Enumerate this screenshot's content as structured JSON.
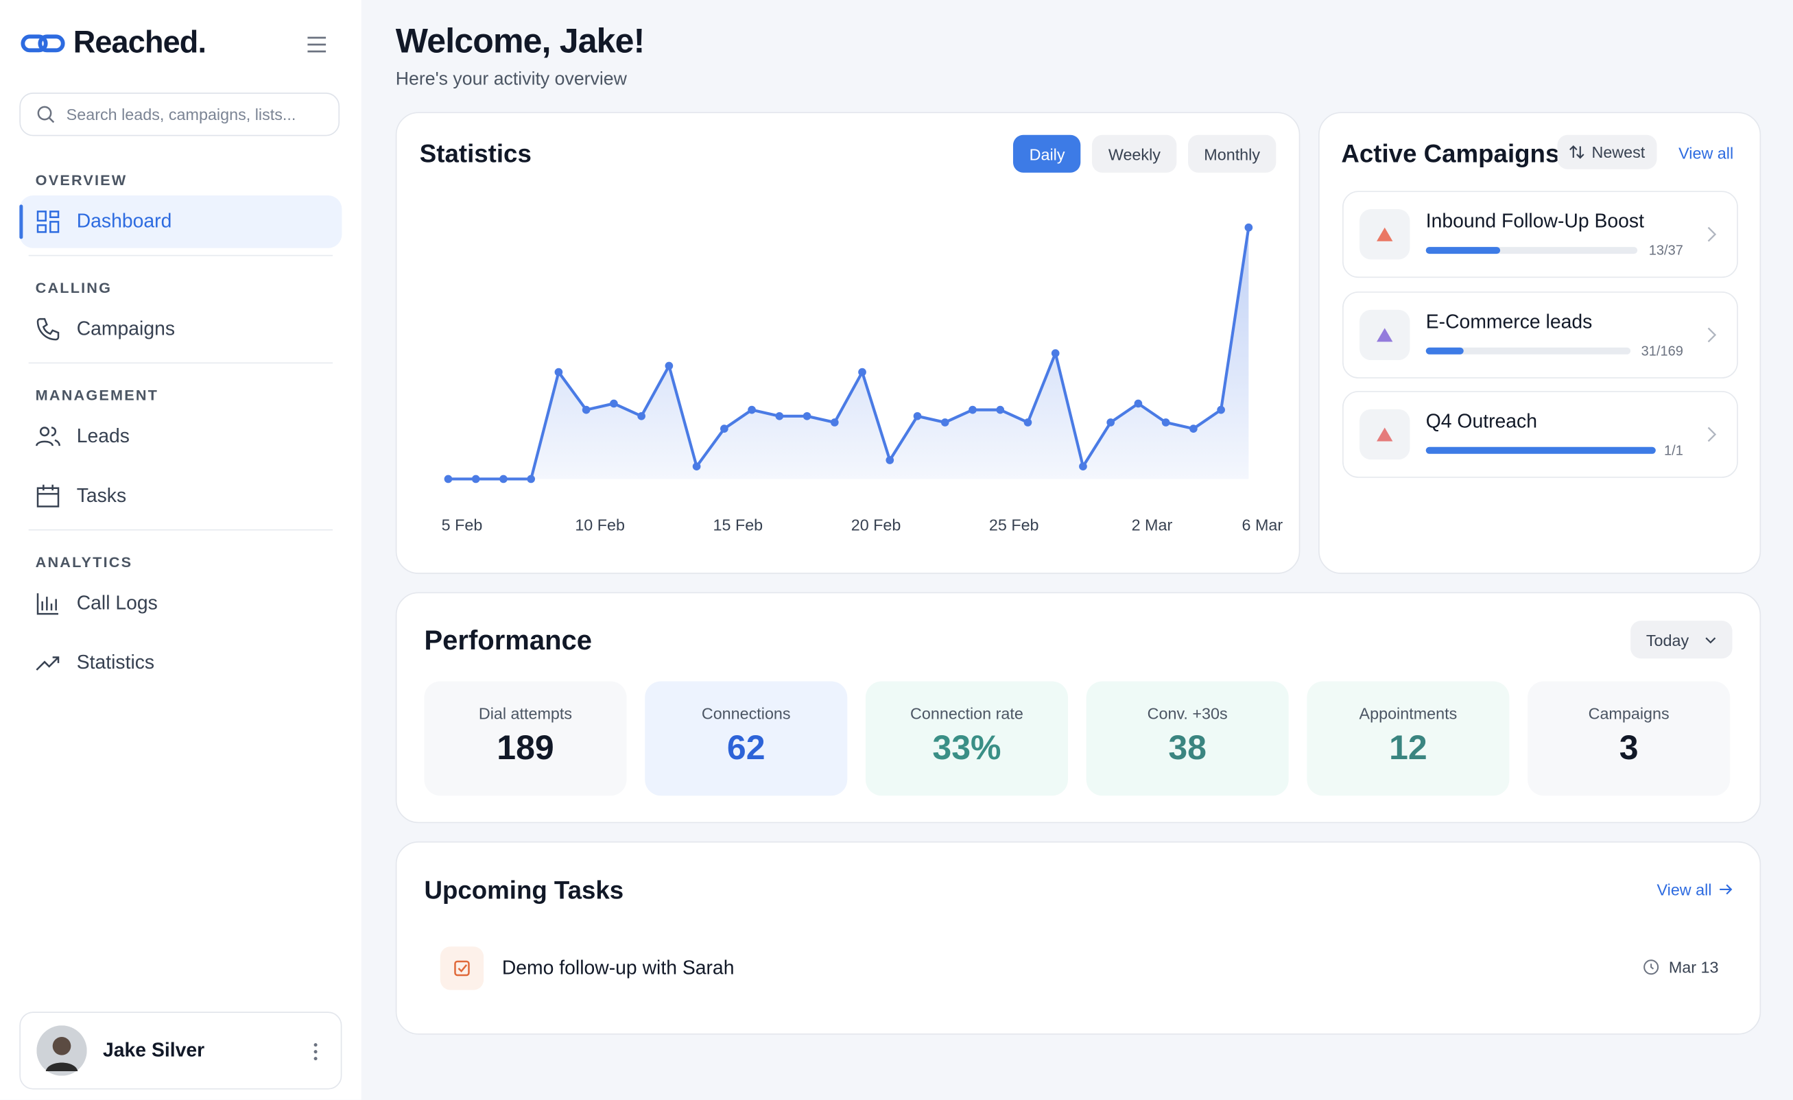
{
  "brand": "Reached.",
  "search_placeholder": "Search leads, campaigns, lists...",
  "nav": [
    {
      "section": "OVERVIEW",
      "items": [
        "Dashboard"
      ]
    },
    {
      "section": "CALLING",
      "items": [
        "Campaigns"
      ]
    },
    {
      "section": "MANAGEMENT",
      "items": [
        "Leads",
        "Tasks"
      ]
    },
    {
      "section": "ANALYTICS",
      "items": [
        "Call Logs",
        "Statistics"
      ]
    }
  ],
  "user": "Jake Silver",
  "header": {
    "title": "Welcome, Jake!",
    "subtitle": "Here's your activity overview"
  },
  "statistics": {
    "title": "Statistics",
    "tabs": [
      "Daily",
      "Weekly",
      "Monthly"
    ],
    "chart": {
      "type": "line",
      "color": "#4a7be5",
      "categories": [
        "5 Feb",
        null,
        null,
        null,
        null,
        "10 Feb",
        null,
        null,
        null,
        null,
        "15 Feb",
        null,
        null,
        null,
        null,
        "20 Feb",
        null,
        null,
        null,
        null,
        "25 Feb",
        null,
        null,
        null,
        null,
        "2 Mar",
        null,
        null,
        null,
        "6 Mar"
      ],
      "values": [
        0,
        0,
        0,
        0,
        17,
        11,
        12,
        10,
        18,
        2,
        8,
        11,
        10,
        10,
        9,
        17,
        3,
        10,
        9,
        11,
        11,
        9,
        20,
        2,
        9,
        12,
        9,
        8,
        11,
        40
      ],
      "ylim": [
        0,
        40
      ]
    }
  },
  "campaigns": {
    "title": "Active Campaigns",
    "sort": "Newest",
    "view_all": "View all",
    "items": [
      {
        "name": "Inbound Follow-Up Boost",
        "done": 13,
        "total": 37,
        "progress_label": "13/37"
      },
      {
        "name": "E-Commerce leads",
        "done": 31,
        "total": 169,
        "progress_label": "31/169"
      },
      {
        "name": "Q4 Outreach",
        "done": 1,
        "total": 1,
        "progress_label": "1/1"
      }
    ]
  },
  "performance": {
    "title": "Performance",
    "period": "Today",
    "metrics": [
      {
        "label": "Dial attempts",
        "value": "189"
      },
      {
        "label": "Connections",
        "value": "62"
      },
      {
        "label": "Connection rate",
        "value": "33%"
      },
      {
        "label": "Conv. +30s",
        "value": "38"
      },
      {
        "label": "Appointments",
        "value": "12"
      },
      {
        "label": "Campaigns",
        "value": "3"
      }
    ]
  },
  "tasks": {
    "title": "Upcoming Tasks",
    "view_all": "View all",
    "items": [
      {
        "name": "Demo follow-up with Sarah",
        "date": "Mar 13"
      }
    ]
  }
}
